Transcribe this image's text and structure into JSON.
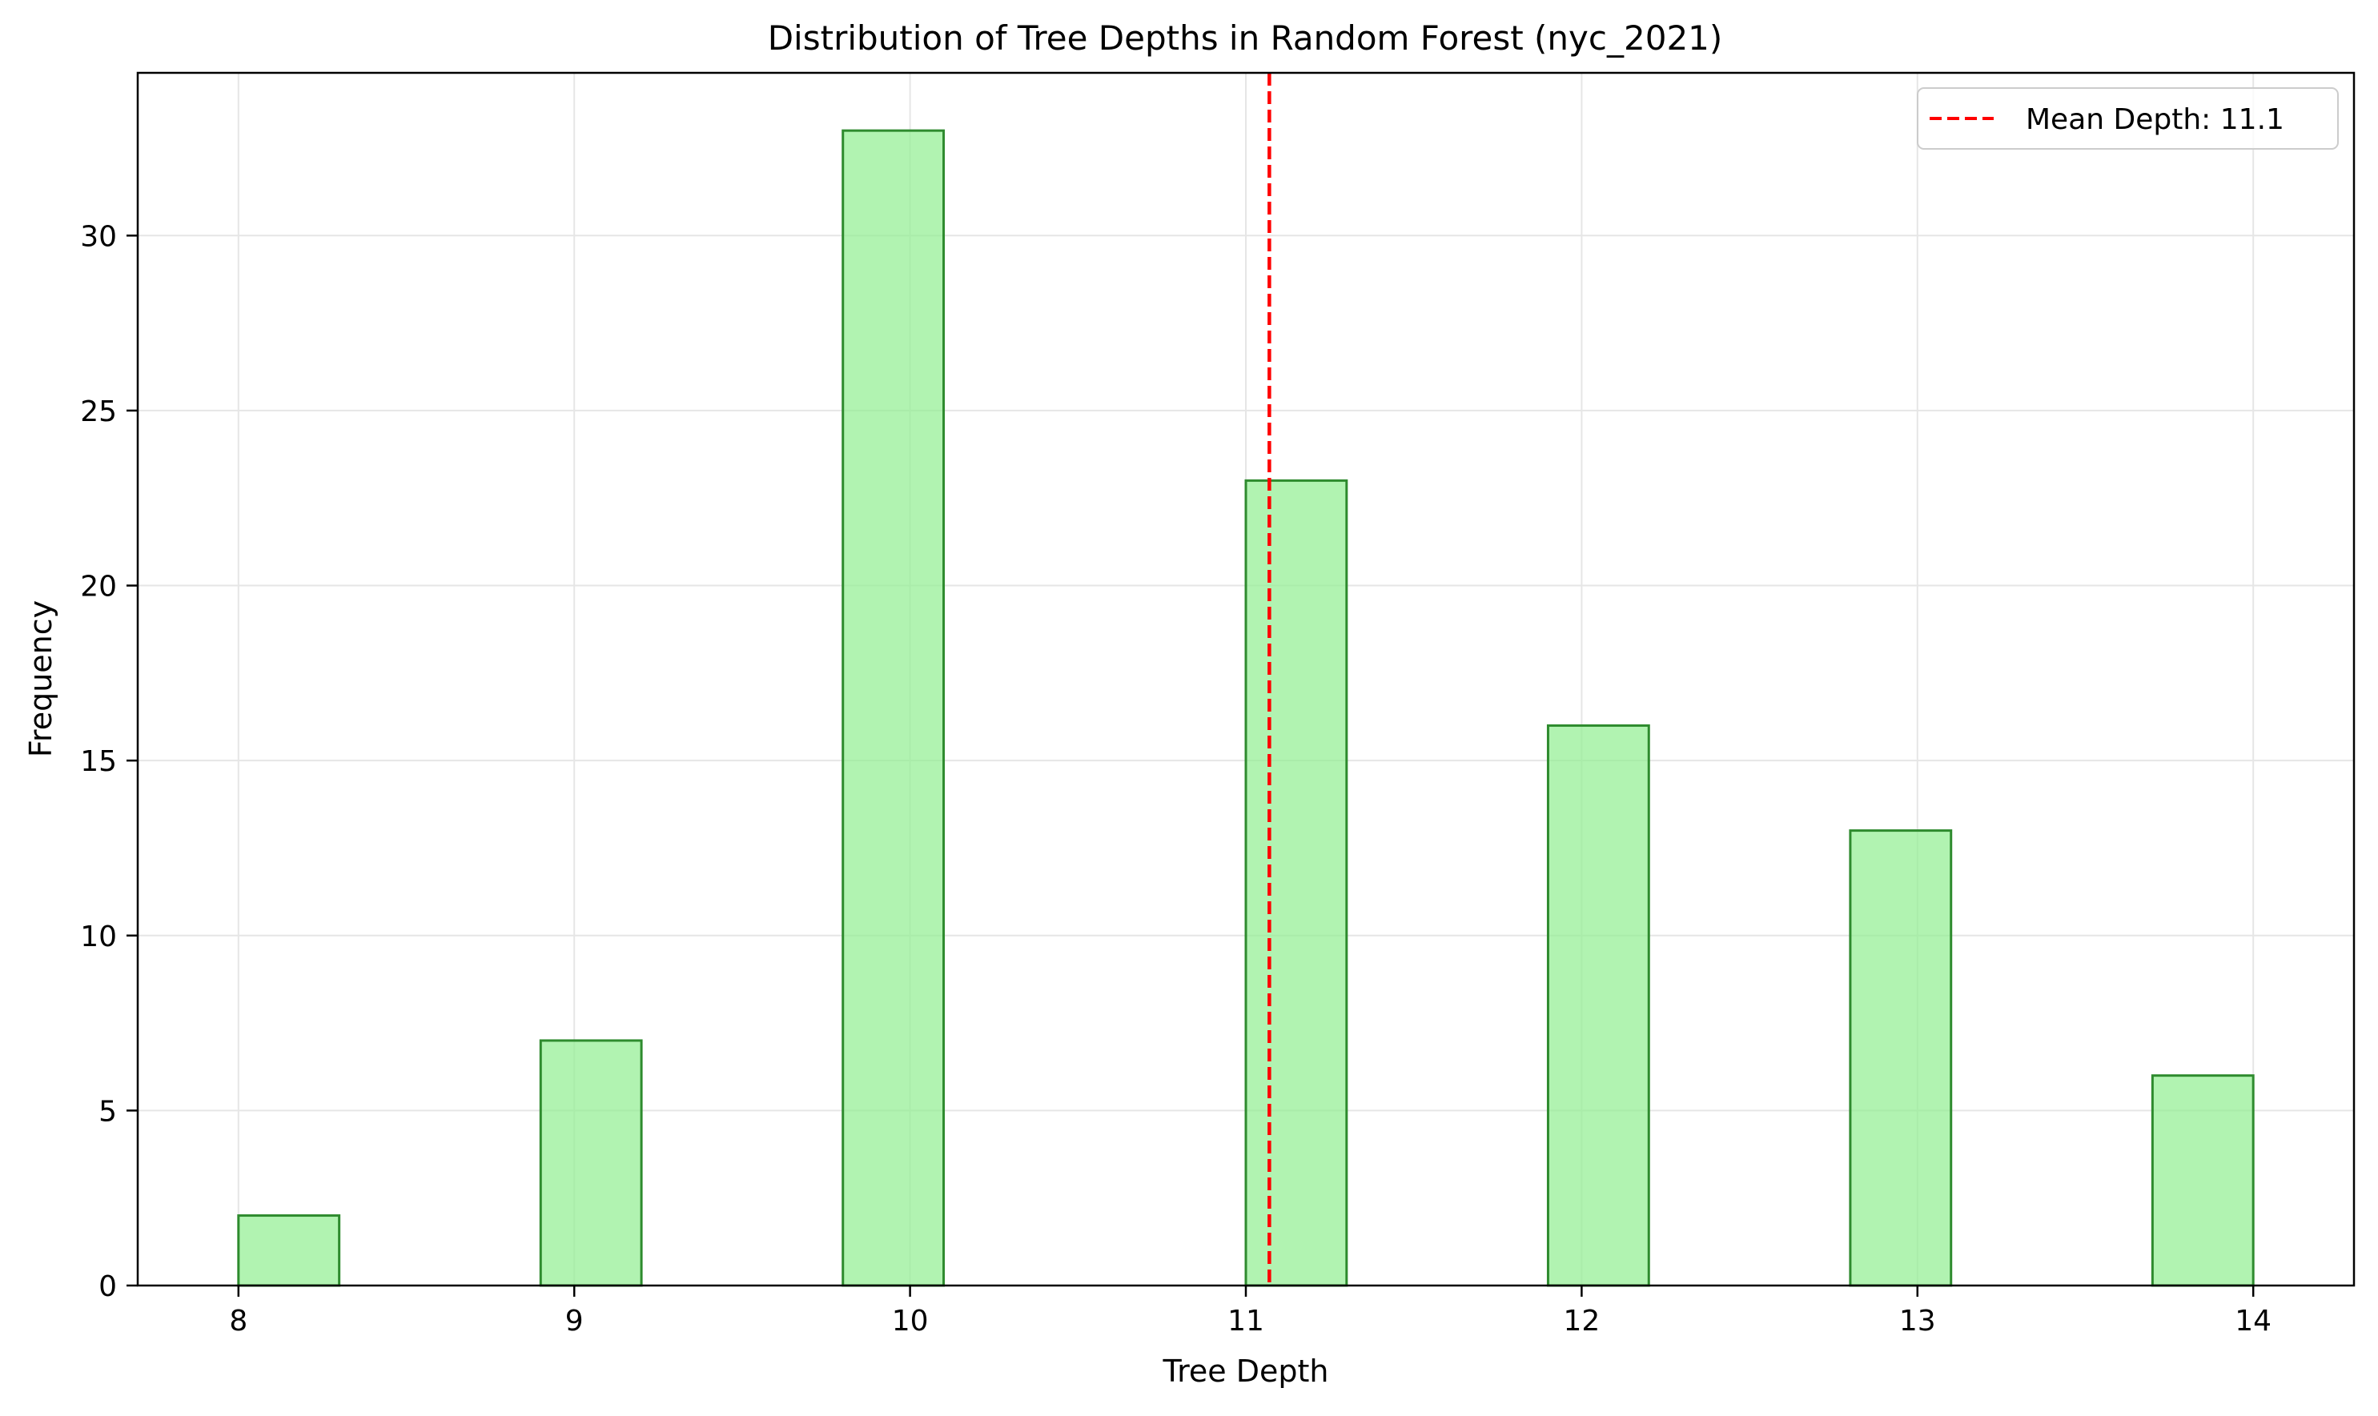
{
  "chart_data": {
    "type": "bar",
    "title": "Distribution of Tree Depths in Random Forest (nyc_2021)",
    "xlabel": "Tree Depth",
    "ylabel": "Frequency",
    "xlim": [
      7.7,
      14.3
    ],
    "ylim": [
      0,
      34.65
    ],
    "xticks": [
      8,
      9,
      10,
      11,
      12,
      13,
      14
    ],
    "yticks": [
      0,
      5,
      10,
      15,
      20,
      25,
      30
    ],
    "grid": true,
    "bars": [
      {
        "x0": 8.0,
        "x1": 8.3,
        "value": 2
      },
      {
        "x0": 8.9,
        "x1": 9.2,
        "value": 7
      },
      {
        "x0": 9.8,
        "x1": 10.1,
        "value": 33
      },
      {
        "x0": 11.0,
        "x1": 11.3,
        "value": 23
      },
      {
        "x0": 11.9,
        "x1": 12.2,
        "value": 16
      },
      {
        "x0": 12.8,
        "x1": 13.1,
        "value": 13
      },
      {
        "x0": 13.7,
        "x1": 14.0,
        "value": 6
      }
    ],
    "mean_line": {
      "x": 11.07,
      "label": "Mean Depth: 11.1",
      "color": "#ff0000",
      "style": "dashed"
    },
    "legend_position": "top-right",
    "colors": {
      "bar_fill": "#90ee90",
      "bar_edge": "#2e8b2e",
      "grid": "#e6e6e6",
      "axis": "#000000"
    }
  }
}
